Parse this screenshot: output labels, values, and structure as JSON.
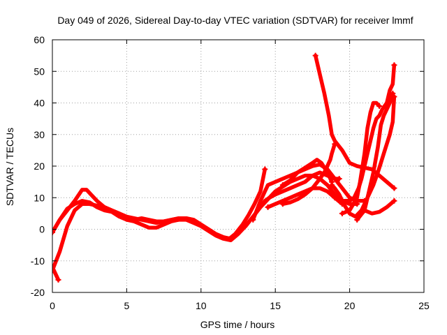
{
  "chart_data": {
    "type": "scatter",
    "title": "Day 049 of 2026, Sidereal Day-to-day VTEC variation (SDTVAR) for receiver lmmf",
    "xlabel": "GPS time / hours",
    "ylabel": "SDTVAR / TECUs",
    "xlim": [
      0,
      25
    ],
    "ylim": [
      -20,
      60
    ],
    "xticks": [
      0,
      5,
      10,
      15,
      20,
      25
    ],
    "yticks": [
      -20,
      -10,
      0,
      10,
      20,
      30,
      40,
      50,
      60
    ],
    "xtick_labels": [
      "0",
      "5",
      "10",
      "15",
      "20",
      "25"
    ],
    "ytick_labels": [
      "-20",
      "-10",
      "0",
      "10",
      "20",
      "30",
      "40",
      "50",
      "60"
    ],
    "grid": true,
    "marker": "plus",
    "color": "#ff0000",
    "series": [
      {
        "name": "s1",
        "points": [
          [
            0.0,
            -12
          ],
          [
            0.2,
            -14
          ],
          [
            0.4,
            -16
          ]
        ]
      },
      {
        "name": "s2",
        "points": [
          [
            0.0,
            -13
          ],
          [
            0.5,
            -7
          ],
          [
            1.0,
            1
          ],
          [
            1.5,
            6
          ],
          [
            2.0,
            8
          ],
          [
            2.5,
            8
          ],
          [
            3.0,
            7.5
          ],
          [
            3.5,
            7
          ],
          [
            4.0,
            6
          ],
          [
            4.5,
            5
          ],
          [
            5.0,
            4
          ],
          [
            5.5,
            3.5
          ],
          [
            6.0,
            3
          ],
          [
            6.5,
            2.5
          ],
          [
            7.0,
            2
          ],
          [
            7.5,
            2.5
          ],
          [
            8.0,
            3
          ],
          [
            8.5,
            3.5
          ],
          [
            9.0,
            3.5
          ],
          [
            9.5,
            3
          ],
          [
            10.0,
            1.5
          ],
          [
            10.5,
            0
          ],
          [
            11.0,
            -1.5
          ],
          [
            11.5,
            -2.5
          ],
          [
            12.0,
            -3
          ],
          [
            12.5,
            -1
          ],
          [
            13.0,
            1
          ],
          [
            13.5,
            4
          ],
          [
            14.0,
            7
          ],
          [
            14.3,
            9
          ],
          [
            14.6,
            10
          ],
          [
            15.0,
            11
          ],
          [
            15.5,
            12
          ],
          [
            16.0,
            13
          ],
          [
            16.5,
            14
          ],
          [
            17.0,
            15
          ],
          [
            17.5,
            17
          ],
          [
            18.0,
            18
          ],
          [
            18.5,
            17
          ],
          [
            19.0,
            16
          ],
          [
            19.3,
            16
          ]
        ]
      },
      {
        "name": "s3",
        "points": [
          [
            0.0,
            -1
          ],
          [
            0.5,
            3
          ],
          [
            1.0,
            6
          ],
          [
            1.5,
            9
          ],
          [
            2.0,
            12.5
          ],
          [
            2.3,
            12.5
          ],
          [
            2.6,
            11
          ],
          [
            3.0,
            9
          ],
          [
            3.5,
            7
          ],
          [
            4.0,
            6
          ],
          [
            4.5,
            5
          ],
          [
            5.0,
            3
          ],
          [
            5.5,
            3
          ],
          [
            6.0,
            3.5
          ],
          [
            6.5,
            3
          ],
          [
            7.0,
            2.5
          ],
          [
            7.5,
            2.5
          ],
          [
            8.0,
            3
          ],
          [
            8.5,
            3.5
          ],
          [
            9.0,
            3.5
          ],
          [
            9.5,
            3
          ],
          [
            10.0,
            1.5
          ],
          [
            10.5,
            0
          ],
          [
            11.0,
            -1.5
          ],
          [
            11.5,
            -2.5
          ],
          [
            11.9,
            -3
          ],
          [
            12.3,
            -1.5
          ],
          [
            12.8,
            1.5
          ],
          [
            13.2,
            4.5
          ],
          [
            13.6,
            8
          ],
          [
            14.0,
            12
          ],
          [
            14.3,
            19
          ]
        ]
      },
      {
        "name": "s4",
        "points": [
          [
            0.0,
            -1
          ],
          [
            0.5,
            3
          ],
          [
            1.0,
            6.5
          ],
          [
            1.5,
            8
          ],
          [
            2.0,
            9
          ],
          [
            2.5,
            8.5
          ],
          [
            3.0,
            7
          ],
          [
            3.5,
            6
          ],
          [
            4.0,
            5.5
          ],
          [
            4.5,
            4
          ],
          [
            5.0,
            3
          ],
          [
            5.5,
            2.5
          ],
          [
            6.0,
            1.5
          ],
          [
            6.5,
            0.5
          ],
          [
            7.0,
            0.5
          ],
          [
            7.5,
            1.5
          ],
          [
            8.0,
            2.5
          ],
          [
            8.5,
            3
          ],
          [
            9.0,
            3
          ],
          [
            9.5,
            2
          ],
          [
            10.0,
            1
          ],
          [
            10.5,
            -0.5
          ],
          [
            11.0,
            -2
          ],
          [
            11.5,
            -3
          ],
          [
            12.0,
            -3.5
          ],
          [
            12.5,
            -1.5
          ],
          [
            13.0,
            1
          ],
          [
            13.5,
            4
          ],
          [
            14.0,
            7
          ],
          [
            14.5,
            9.5
          ],
          [
            15.0,
            12
          ],
          [
            15.5,
            13.5
          ],
          [
            16.0,
            15
          ],
          [
            16.5,
            16
          ],
          [
            17.0,
            17
          ],
          [
            17.5,
            17
          ],
          [
            18.0,
            16
          ],
          [
            18.5,
            14
          ],
          [
            19.0,
            11
          ],
          [
            19.5,
            9
          ],
          [
            20.0,
            8
          ],
          [
            20.5,
            8
          ]
        ]
      },
      {
        "name": "s5",
        "points": [
          [
            13.5,
            3
          ],
          [
            14.0,
            9
          ],
          [
            14.3,
            12
          ],
          [
            14.5,
            14
          ],
          [
            15.0,
            15
          ],
          [
            15.5,
            16
          ],
          [
            16.0,
            17
          ],
          [
            16.5,
            18
          ],
          [
            17.0,
            19
          ],
          [
            17.5,
            20
          ],
          [
            18.0,
            20.5
          ],
          [
            18.5,
            19
          ],
          [
            19.0,
            16
          ],
          [
            19.5,
            13
          ],
          [
            20.0,
            10
          ],
          [
            20.5,
            9
          ],
          [
            21.0,
            9
          ]
        ]
      },
      {
        "name": "s6",
        "points": [
          [
            14.5,
            7
          ],
          [
            15.0,
            8
          ],
          [
            15.5,
            9
          ],
          [
            16.0,
            10
          ],
          [
            16.5,
            11
          ],
          [
            17.0,
            12
          ],
          [
            17.5,
            13
          ],
          [
            18.0,
            13
          ],
          [
            18.5,
            12
          ],
          [
            19.0,
            10
          ],
          [
            19.5,
            8
          ]
        ]
      },
      {
        "name": "s7",
        "points": [
          [
            15.5,
            14
          ],
          [
            16.0,
            15.5
          ],
          [
            16.5,
            18
          ],
          [
            17.0,
            19.5
          ],
          [
            17.5,
            21
          ],
          [
            17.8,
            22
          ],
          [
            18.1,
            21
          ],
          [
            18.5,
            18
          ],
          [
            18.8,
            15
          ]
        ]
      },
      {
        "name": "s8",
        "points": [
          [
            15.5,
            8
          ],
          [
            16.0,
            8.5
          ],
          [
            16.5,
            9.5
          ],
          [
            17.0,
            11
          ],
          [
            17.5,
            13
          ],
          [
            18.0,
            16
          ],
          [
            18.3,
            18
          ],
          [
            18.5,
            20
          ],
          [
            18.7,
            22
          ],
          [
            18.8,
            24
          ],
          [
            19.0,
            27
          ]
        ]
      },
      {
        "name": "s9",
        "points": [
          [
            17.7,
            55
          ],
          [
            18.0,
            49
          ],
          [
            18.3,
            43
          ],
          [
            18.6,
            36
          ],
          [
            18.8,
            30
          ],
          [
            19.0,
            28
          ],
          [
            19.5,
            25
          ],
          [
            20.0,
            21
          ],
          [
            20.5,
            20
          ],
          [
            21.0,
            19.5
          ],
          [
            21.5,
            19
          ],
          [
            22.0,
            17
          ],
          [
            22.5,
            15
          ],
          [
            23.0,
            13
          ]
        ]
      },
      {
        "name": "s10",
        "points": [
          [
            18.8,
            14
          ],
          [
            19.0,
            13
          ],
          [
            19.3,
            11
          ],
          [
            19.6,
            8
          ],
          [
            20.0,
            5
          ],
          [
            20.4,
            4
          ],
          [
            20.8,
            6
          ],
          [
            21.2,
            10
          ],
          [
            21.6,
            14
          ],
          [
            21.9,
            18
          ],
          [
            22.1,
            21
          ],
          [
            22.3,
            24
          ],
          [
            22.5,
            27
          ],
          [
            22.7,
            30
          ],
          [
            22.9,
            34
          ],
          [
            23.0,
            42
          ]
        ]
      },
      {
        "name": "s11",
        "points": [
          [
            19.0,
            10
          ],
          [
            19.5,
            9
          ],
          [
            20.0,
            9
          ],
          [
            20.3,
            10
          ],
          [
            20.6,
            13
          ],
          [
            20.8,
            16
          ],
          [
            21.0,
            20
          ],
          [
            21.2,
            24
          ],
          [
            21.4,
            28
          ],
          [
            21.6,
            32
          ],
          [
            21.8,
            35
          ],
          [
            22.0,
            36
          ],
          [
            22.2,
            38
          ],
          [
            22.5,
            40
          ],
          [
            22.7,
            44
          ],
          [
            22.9,
            46
          ],
          [
            23.0,
            52
          ]
        ]
      },
      {
        "name": "s12",
        "points": [
          [
            19.5,
            5
          ],
          [
            20.0,
            6
          ],
          [
            20.5,
            10
          ],
          [
            20.7,
            15
          ],
          [
            21.0,
            24
          ],
          [
            21.2,
            32
          ],
          [
            21.4,
            37
          ],
          [
            21.6,
            40
          ],
          [
            21.8,
            40
          ],
          [
            22.0,
            39
          ]
        ]
      },
      {
        "name": "s13",
        "points": [
          [
            20.5,
            3
          ],
          [
            21.0,
            6
          ],
          [
            21.3,
            12
          ],
          [
            21.6,
            18
          ],
          [
            21.9,
            26
          ],
          [
            22.1,
            33
          ],
          [
            22.3,
            36
          ],
          [
            22.5,
            38
          ],
          [
            22.7,
            40
          ],
          [
            22.9,
            43
          ]
        ]
      },
      {
        "name": "s14",
        "points": [
          [
            21.0,
            6
          ],
          [
            21.5,
            5
          ],
          [
            22.0,
            5.5
          ],
          [
            22.5,
            7
          ],
          [
            23.0,
            9
          ]
        ]
      }
    ]
  }
}
